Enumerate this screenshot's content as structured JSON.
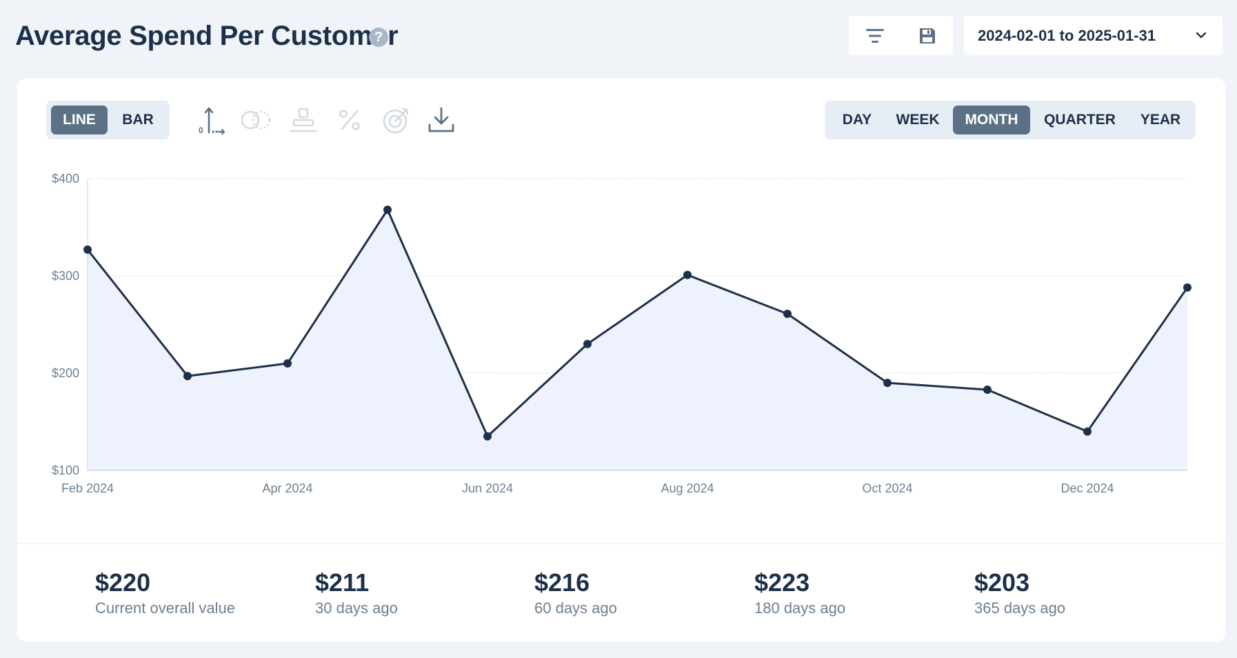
{
  "header": {
    "title": "Average Spend Per Customer",
    "help": "?",
    "date_range": "2024-02-01 to 2025-01-31"
  },
  "chart_type_toggle": {
    "options": [
      "LINE",
      "BAR"
    ],
    "selected": "LINE"
  },
  "chart_tools": [
    "axis-icon",
    "compare-icon",
    "stack-icon",
    "percent-icon",
    "target-icon",
    "download-icon"
  ],
  "period_toggle": {
    "options": [
      "DAY",
      "WEEK",
      "MONTH",
      "QUARTER",
      "YEAR"
    ],
    "selected": "MONTH"
  },
  "chart_data": {
    "type": "area",
    "x": [
      "2024-02",
      "2024-03",
      "2024-04",
      "2024-05",
      "2024-06",
      "2024-07",
      "2024-08",
      "2024-09",
      "2024-10",
      "2024-11",
      "2024-12",
      "2025-01"
    ],
    "x_tick_labels": [
      "Feb 2024",
      "Apr 2024",
      "Jun 2024",
      "Aug 2024",
      "Oct 2024",
      "Dec 2024"
    ],
    "values": [
      327,
      197,
      210,
      368,
      135,
      230,
      301,
      261,
      190,
      183,
      140,
      288
    ],
    "y_ticks": [
      "$100",
      "$200",
      "$300",
      "$400"
    ],
    "ylim": [
      100,
      400
    ],
    "grid": true,
    "colors": {
      "line": "#1d3049",
      "fill": "#eef2fc",
      "grid": "#d5dbe3"
    }
  },
  "stats": [
    {
      "value": "$220",
      "label": "Current overall value"
    },
    {
      "value": "$211",
      "label": "30 days ago"
    },
    {
      "value": "$216",
      "label": "60 days ago"
    },
    {
      "value": "$223",
      "label": "180 days ago"
    },
    {
      "value": "$203",
      "label": "365 days ago"
    }
  ]
}
